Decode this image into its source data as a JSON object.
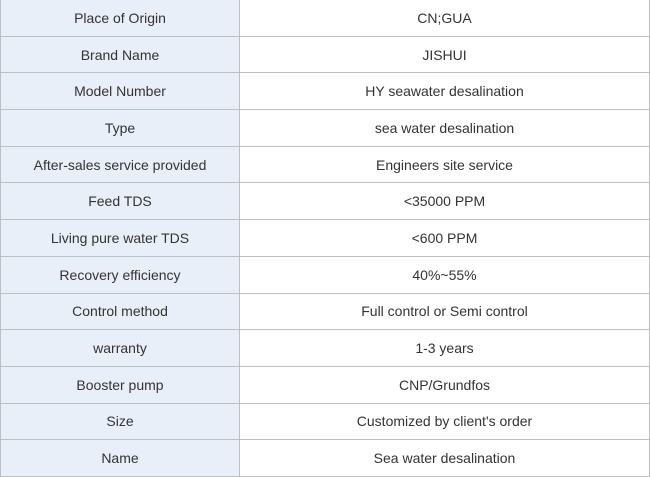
{
  "spec_table": {
    "rows": [
      {
        "label": "Place of Origin",
        "value": "CN;GUA"
      },
      {
        "label": "Brand Name",
        "value": "JISHUI"
      },
      {
        "label": "Model Number",
        "value": "HY seawater desalination"
      },
      {
        "label": "Type",
        "value": "sea water desalination"
      },
      {
        "label": "After-sales service provided",
        "value": "Engineers site service"
      },
      {
        "label": "Feed TDS",
        "value": "<35000 PPM"
      },
      {
        "label": "Living pure water TDS",
        "value": "<600 PPM"
      },
      {
        "label": "Recovery efficiency",
        "value": "40%~55%"
      },
      {
        "label": "Control method",
        "value": "Full control or Semi control"
      },
      {
        "label": "warranty",
        "value": "1-3 years"
      },
      {
        "label": "Booster pump",
        "value": "CNP/Grundfos"
      },
      {
        "label": "Size",
        "value": "Customized by client's order"
      },
      {
        "label": "Name",
        "value": "Sea water desalination"
      }
    ]
  },
  "colors": {
    "label_background": "#e8eff8",
    "border": "#bfbfbf",
    "text": "#333333"
  }
}
